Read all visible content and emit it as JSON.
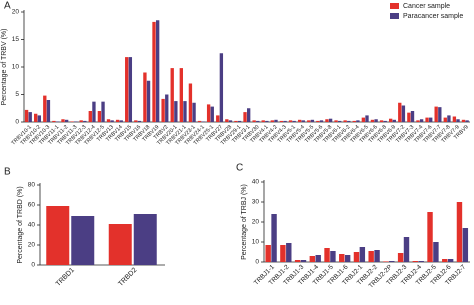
{
  "chart_data": [
    {
      "type": "bar",
      "panel": "A",
      "ylabel": "Percentage of TRBV (%)",
      "categories": [
        "TRBV10-1",
        "TRBV10-2",
        "TRBV10-3",
        "TRBV11-1",
        "TRBV11-2",
        "TRBV11-3",
        "TRBV12-3",
        "TRBV12-4",
        "TRBV12-5",
        "TRBV13",
        "TRBV14",
        "TRBV15",
        "TRBV16",
        "TRBV18",
        "TRBV19",
        "TRBV2",
        "TRBV20-1",
        "TRBV21-1",
        "TRBV23-1",
        "TRBV24-1",
        "TRBV25-1",
        "TRBV27",
        "TRBV28",
        "TRBV29-1",
        "TRBV3-1",
        "TRBV30",
        "TRBV4-1",
        "TRBV4-2",
        "TRBV4-3",
        "TRBV5-1",
        "TRBV5-4",
        "TRBV5-5",
        "TRBV5-6",
        "TRBV5-8",
        "TRBV6-1",
        "TRBV6-2",
        "TRBV6-4",
        "TRBV6-5",
        "TRBV6-6",
        "TRBV6-8",
        "TRBV6-9",
        "TRBV7-2",
        "TRBV7-3",
        "TRBV7-4",
        "TRBV7-6",
        "TRBV7-7",
        "TRBV7-8",
        "TRBV7-9",
        "TRBV9"
      ],
      "series": [
        {
          "name": "Cancer sample",
          "color": "#e3312b",
          "values": [
            2.2,
            1.5,
            4.8,
            0.2,
            0.5,
            0.1,
            0.3,
            2.0,
            2.0,
            0.5,
            0.4,
            11.8,
            0.3,
            9.0,
            18.2,
            4.2,
            9.8,
            9.8,
            7.0,
            0.2,
            3.2,
            1.2,
            0.5,
            0.2,
            1.8,
            0.3,
            0.3,
            0.3,
            0.2,
            0.3,
            0.4,
            0.3,
            0.2,
            0.5,
            0.3,
            0.3,
            0.2,
            0.8,
            0.4,
            0.3,
            0.6,
            3.5,
            1.7,
            0.3,
            0.8,
            2.8,
            0.8,
            1.0,
            0.4
          ]
        },
        {
          "name": "Paracancer sample",
          "color": "#4b3e84",
          "values": [
            1.8,
            1.2,
            4.0,
            0.1,
            0.4,
            0.1,
            0.2,
            3.7,
            3.7,
            0.3,
            0.3,
            11.8,
            0.2,
            7.5,
            18.5,
            5.0,
            3.8,
            3.8,
            3.5,
            0.1,
            2.8,
            12.5,
            0.3,
            0.2,
            2.5,
            0.2,
            0.2,
            0.4,
            0.2,
            0.2,
            0.3,
            0.4,
            0.3,
            0.6,
            0.2,
            0.2,
            0.3,
            1.2,
            0.5,
            0.2,
            0.4,
            3.0,
            2.0,
            0.5,
            0.8,
            2.7,
            1.2,
            0.5,
            0.3
          ]
        }
      ],
      "ylim": [
        0,
        20
      ],
      "yticks": [
        0,
        5,
        10,
        15,
        20
      ],
      "legend": "upper right"
    },
    {
      "type": "bar",
      "panel": "B",
      "ylabel": "Percentage of TRBD (%)",
      "categories": [
        "TRBD1",
        "TRBD2"
      ],
      "series": [
        {
          "color": "#e3312b",
          "values": [
            59,
            41
          ]
        },
        {
          "color": "#4b3e84",
          "values": [
            49,
            51
          ]
        }
      ],
      "ylim": [
        0,
        80
      ],
      "yticks": [
        0,
        20,
        40,
        60,
        80
      ]
    },
    {
      "type": "bar",
      "panel": "C",
      "ylabel": "Percentage of TRBJ (%)",
      "categories": [
        "TRBJ1-1",
        "TRBJ1-2",
        "TRBJ1-3",
        "TRBJ1-4",
        "TRBJ1-5",
        "TRBJ1-6",
        "TRBJ2-1",
        "TRBJ2-2",
        "TRBJ2-2P",
        "TRBJ2-3",
        "TRBJ2-4",
        "TRBJ2-5",
        "TRBJ2-6",
        "TRBJ2-7"
      ],
      "series": [
        {
          "color": "#e3312b",
          "values": [
            8.5,
            8.5,
            1,
            3,
            7,
            4,
            5,
            5.5,
            0.3,
            4.5,
            0.5,
            25,
            1.5,
            30
          ]
        },
        {
          "color": "#4b3e84",
          "values": [
            24,
            9.5,
            1,
            3.5,
            5.5,
            3.5,
            7.5,
            6,
            0.5,
            12.5,
            0.5,
            10,
            1.5,
            17
          ]
        }
      ],
      "ylim": [
        0,
        40
      ],
      "yticks": [
        0,
        10,
        20,
        30,
        40
      ]
    }
  ]
}
